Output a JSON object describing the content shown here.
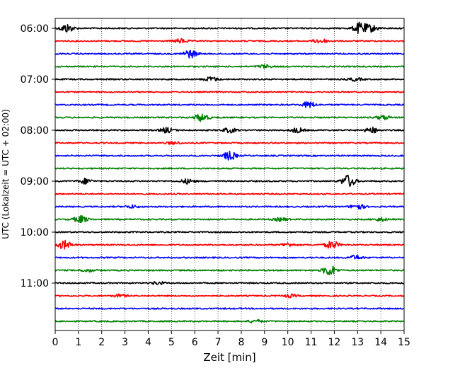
{
  "chart_data": {
    "type": "line",
    "title": "",
    "xlabel": "Zeit  [min]",
    "ylabel": "UTC (Lokalzeit = UTC + 02:00)",
    "xlim": [
      0,
      15
    ],
    "x_ticks": [
      0,
      1,
      2,
      3,
      4,
      5,
      6,
      7,
      8,
      9,
      10,
      11,
      12,
      13,
      14,
      15
    ],
    "x_tick_labels": [
      "0",
      "1",
      "2",
      "3",
      "4",
      "5",
      "6",
      "7",
      "8",
      "9",
      "10",
      "11",
      "12",
      "13",
      "14",
      "15"
    ],
    "y_tick_labels": [
      "06:00",
      "07:00",
      "08:00",
      "09:00",
      "10:00",
      "11:00"
    ],
    "grid": {
      "x": true,
      "style": "dotted"
    },
    "legend": "none",
    "colors": [
      "#000000",
      "#ff0000",
      "#0000ff",
      "#008000"
    ],
    "traces": [
      {
        "start": "06:00",
        "color": "#000000",
        "events": [
          {
            "t": 0.5,
            "amp": 0.9
          },
          {
            "t": 13.1,
            "amp": 1.2
          },
          {
            "t": 13.6,
            "amp": 0.7
          }
        ]
      },
      {
        "start": "06:15",
        "color": "#ff0000",
        "events": [
          {
            "t": 5.4,
            "amp": 0.45
          },
          {
            "t": 11.4,
            "amp": 0.5
          }
        ]
      },
      {
        "start": "06:30",
        "color": "#0000ff",
        "events": [
          {
            "t": 5.8,
            "amp": 0.85
          }
        ]
      },
      {
        "start": "06:45",
        "color": "#008000",
        "events": [
          {
            "t": 9.0,
            "amp": 0.35
          }
        ]
      },
      {
        "start": "07:00",
        "color": "#000000",
        "events": [
          {
            "t": 6.7,
            "amp": 0.5
          },
          {
            "t": 12.9,
            "amp": 0.35
          }
        ]
      },
      {
        "start": "07:15",
        "color": "#ff0000",
        "events": []
      },
      {
        "start": "07:30",
        "color": "#0000ff",
        "events": [
          {
            "t": 10.9,
            "amp": 0.65
          }
        ]
      },
      {
        "start": "07:45",
        "color": "#008000",
        "events": [
          {
            "t": 6.3,
            "amp": 0.9
          },
          {
            "t": 14.1,
            "amp": 0.45
          }
        ]
      },
      {
        "start": "08:00",
        "color": "#000000",
        "events": [
          {
            "t": 4.8,
            "amp": 0.55
          },
          {
            "t": 7.5,
            "amp": 0.5
          },
          {
            "t": 10.4,
            "amp": 0.5
          },
          {
            "t": 13.6,
            "amp": 0.6
          }
        ]
      },
      {
        "start": "08:15",
        "color": "#ff0000",
        "events": [
          {
            "t": 5.1,
            "amp": 0.3
          }
        ]
      },
      {
        "start": "08:30",
        "color": "#0000ff",
        "events": [
          {
            "t": 7.5,
            "amp": 0.9
          }
        ]
      },
      {
        "start": "08:45",
        "color": "#008000",
        "events": []
      },
      {
        "start": "09:00",
        "color": "#000000",
        "events": [
          {
            "t": 1.3,
            "amp": 0.55
          },
          {
            "t": 5.7,
            "amp": 0.5
          },
          {
            "t": 12.6,
            "amp": 1.35
          }
        ]
      },
      {
        "start": "09:15",
        "color": "#ff0000",
        "events": []
      },
      {
        "start": "09:30",
        "color": "#0000ff",
        "events": [
          {
            "t": 3.3,
            "amp": 0.3
          },
          {
            "t": 13.0,
            "amp": 0.6
          }
        ]
      },
      {
        "start": "09:45",
        "color": "#008000",
        "events": [
          {
            "t": 1.1,
            "amp": 0.75
          },
          {
            "t": 9.7,
            "amp": 0.35
          },
          {
            "t": 14.0,
            "amp": 0.35
          }
        ]
      },
      {
        "start": "10:00",
        "color": "#000000",
        "events": []
      },
      {
        "start": "10:15",
        "color": "#ff0000",
        "events": [
          {
            "t": 0.4,
            "amp": 0.9
          },
          {
            "t": 10.0,
            "amp": 0.4
          },
          {
            "t": 11.9,
            "amp": 0.85
          }
        ]
      },
      {
        "start": "10:30",
        "color": "#0000ff",
        "events": [
          {
            "t": 12.9,
            "amp": 0.45
          }
        ]
      },
      {
        "start": "10:45",
        "color": "#008000",
        "events": [
          {
            "t": 1.4,
            "amp": 0.3
          },
          {
            "t": 11.8,
            "amp": 1.15
          }
        ]
      },
      {
        "start": "11:00",
        "color": "#000000",
        "events": [
          {
            "t": 4.4,
            "amp": 0.3
          }
        ]
      },
      {
        "start": "11:15",
        "color": "#ff0000",
        "events": [
          {
            "t": 2.8,
            "amp": 0.3
          },
          {
            "t": 10.1,
            "amp": 0.3
          }
        ]
      },
      {
        "start": "11:30",
        "color": "#0000ff",
        "events": []
      },
      {
        "start": "11:45",
        "color": "#008000",
        "events": [
          {
            "t": 8.6,
            "amp": 0.3
          }
        ]
      }
    ]
  }
}
